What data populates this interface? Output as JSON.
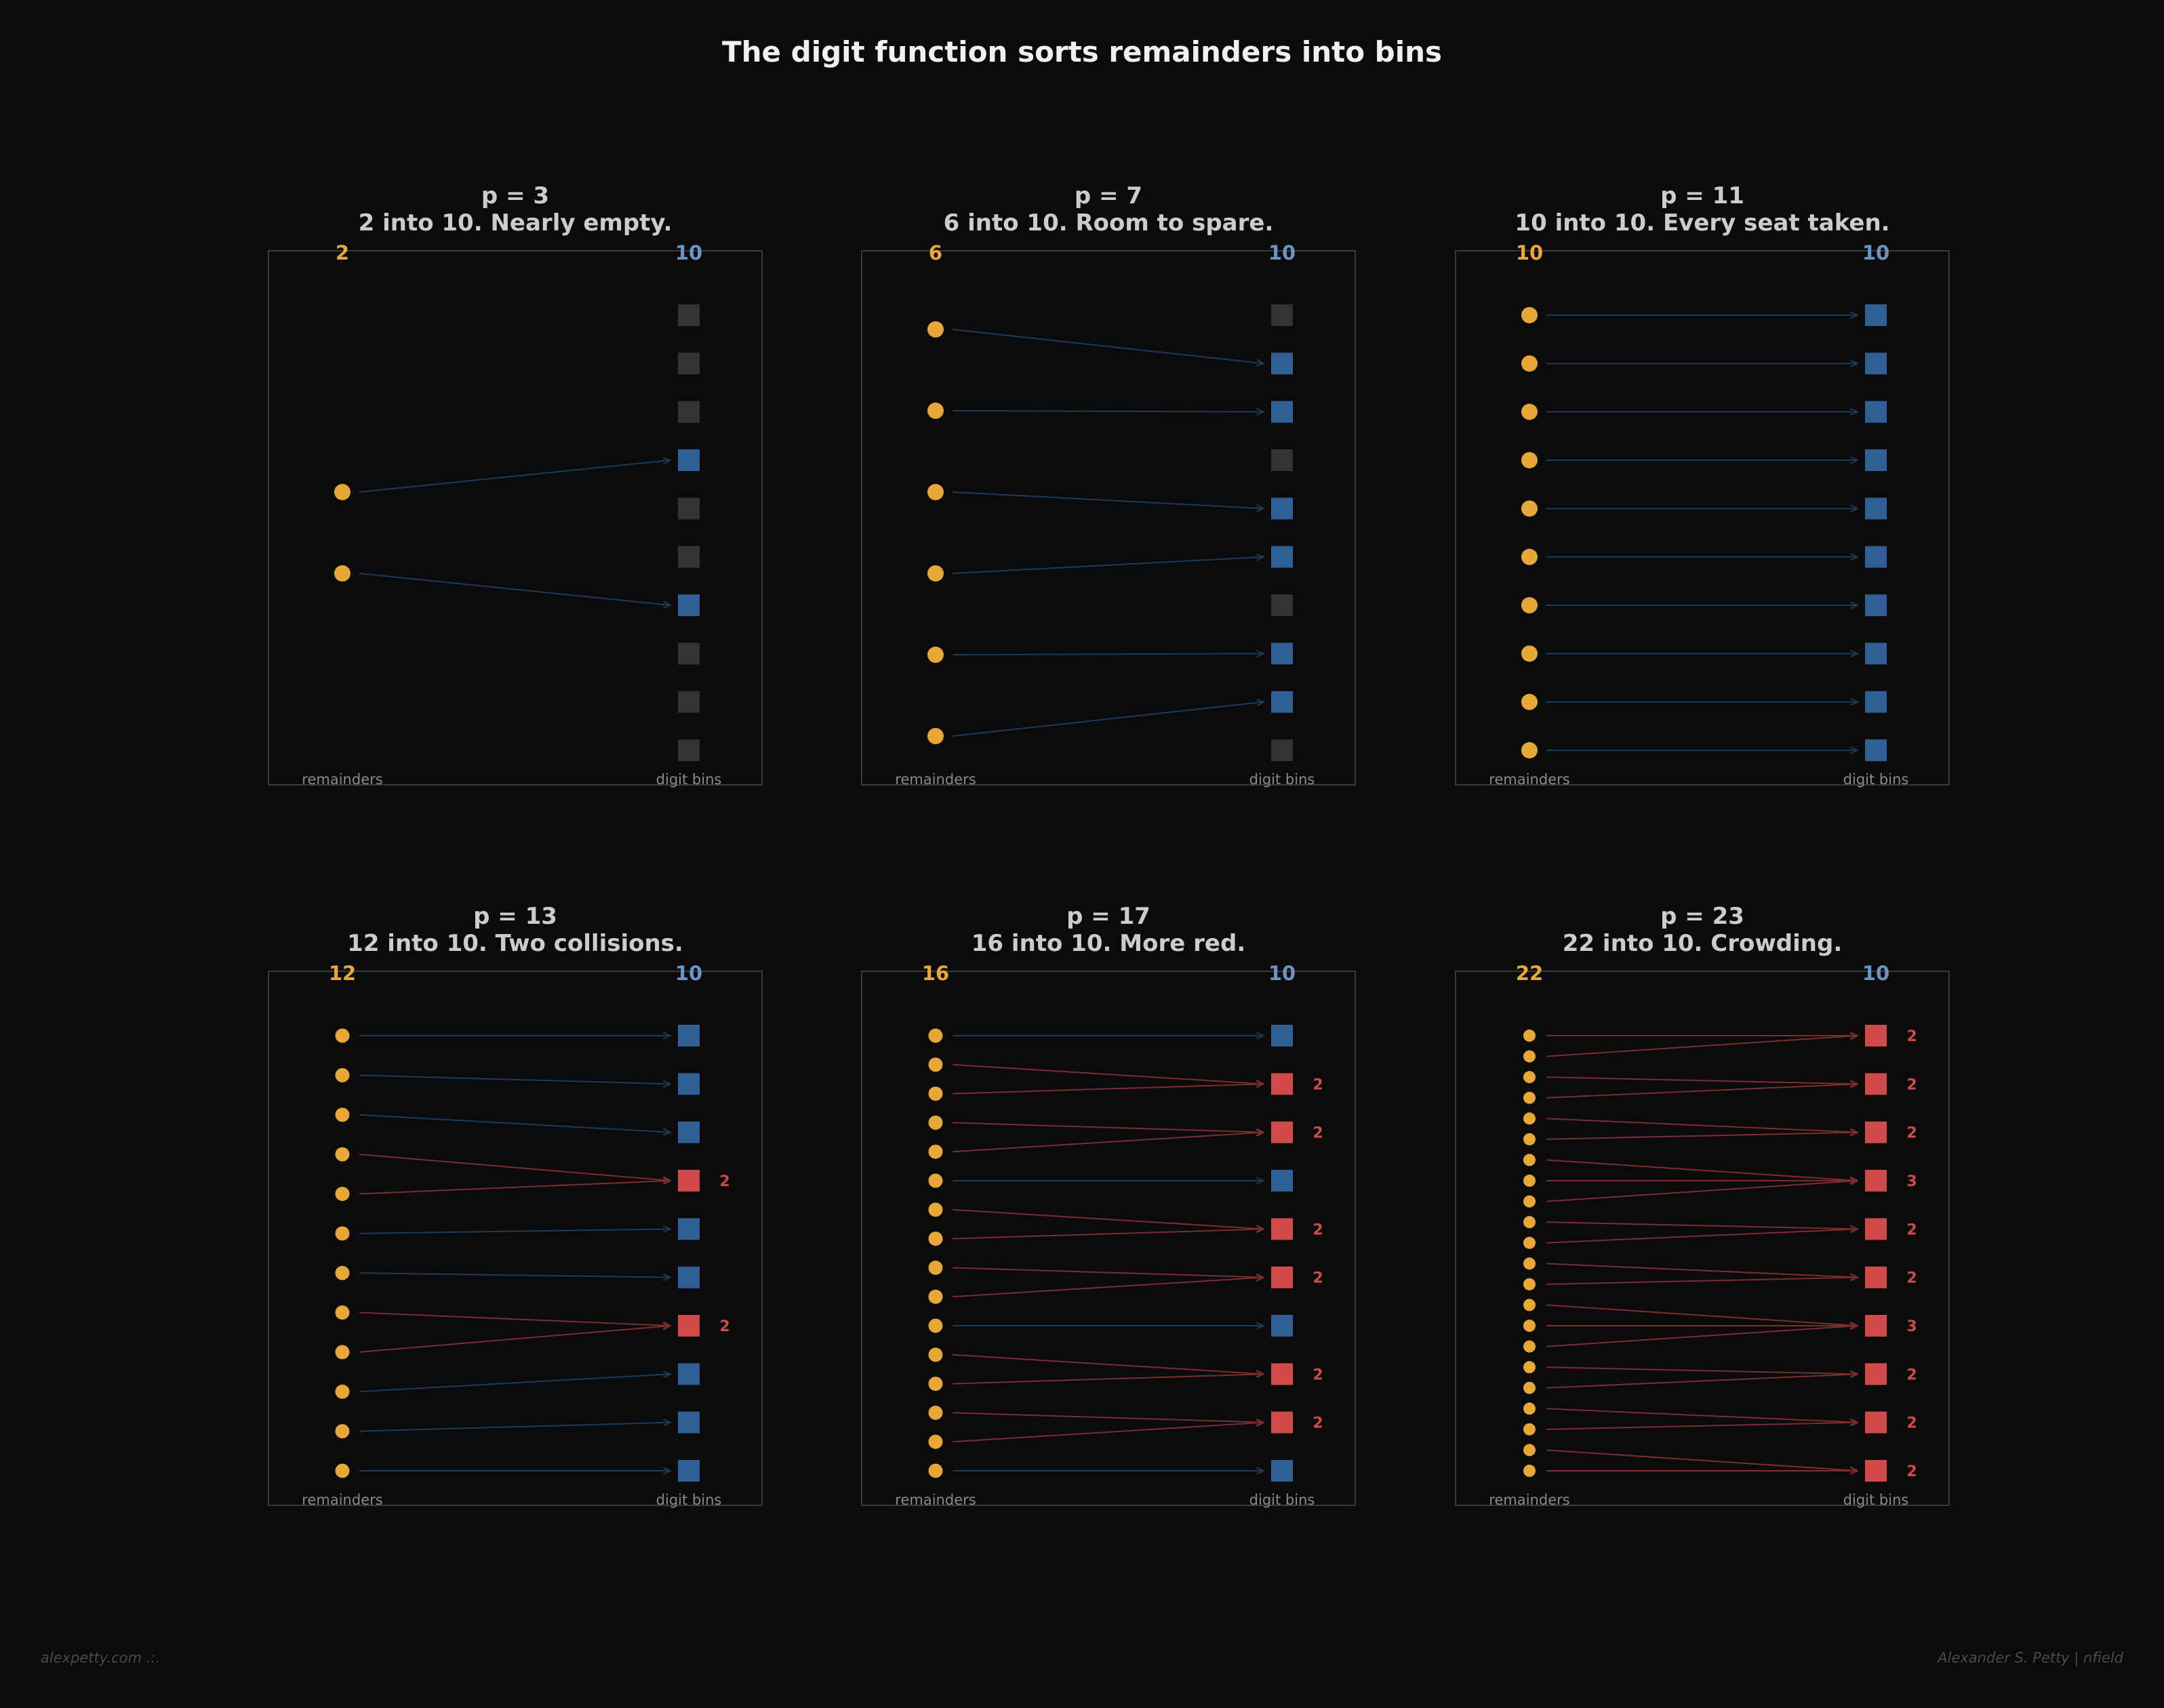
{
  "title": "The digit function sorts remainders into bins",
  "labels": {
    "remainders": "remainders",
    "bins": "digit bins"
  },
  "colors": {
    "background": "#0b0b0b",
    "remainder": "#e8a838",
    "bin_hit": "#2f5f94",
    "bin_collision": "#d14a4a",
    "bin_empty": "#333333",
    "arrow": "#1f3b5c",
    "arrow_collision": "#7a2e2e",
    "title": "#f0f0f0",
    "subtitle": "#cccccc",
    "bin_count_label": "#6a94c4",
    "axis_label": "#8a8a8a"
  },
  "panels": [
    {
      "heading": "p = 3",
      "subtitle": "2 into 10. Nearly empty.",
      "remainder_count_label": "2",
      "bin_count_label": "10",
      "bin_count": 10,
      "mapping": [
        3,
        6
      ]
    },
    {
      "heading": "p = 7",
      "subtitle": "6 into 10. Room to spare.",
      "remainder_count_label": "6",
      "bin_count_label": "10",
      "bin_count": 10,
      "mapping": [
        1,
        2,
        4,
        5,
        7,
        8
      ]
    },
    {
      "heading": "p = 11",
      "subtitle": "10 into 10. Every seat taken.",
      "remainder_count_label": "10",
      "bin_count_label": "10",
      "bin_count": 10,
      "mapping": [
        0,
        1,
        2,
        3,
        4,
        5,
        6,
        7,
        8,
        9
      ]
    },
    {
      "heading": "p = 13",
      "subtitle": "12 into 10. Two collisions.",
      "remainder_count_label": "12",
      "bin_count_label": "10",
      "bin_count": 10,
      "mapping": [
        0,
        1,
        2,
        3,
        3,
        4,
        5,
        6,
        6,
        7,
        8,
        9
      ]
    },
    {
      "heading": "p = 17",
      "subtitle": "16 into 10. More red.",
      "remainder_count_label": "16",
      "bin_count_label": "10",
      "bin_count": 10,
      "mapping": [
        0,
        1,
        1,
        2,
        2,
        3,
        4,
        4,
        5,
        5,
        6,
        7,
        7,
        8,
        8,
        9
      ]
    },
    {
      "heading": "p = 23",
      "subtitle": "22 into 10. Crowding.",
      "remainder_count_label": "22",
      "bin_count_label": "10",
      "bin_count": 10,
      "mapping": [
        0,
        0,
        1,
        1,
        2,
        2,
        3,
        3,
        3,
        4,
        4,
        5,
        5,
        6,
        6,
        6,
        7,
        7,
        8,
        8,
        9,
        9
      ]
    }
  ],
  "footer": {
    "left": "alexpetty.com  .:.",
    "right": "Alexander S. Petty  |  nfield"
  }
}
